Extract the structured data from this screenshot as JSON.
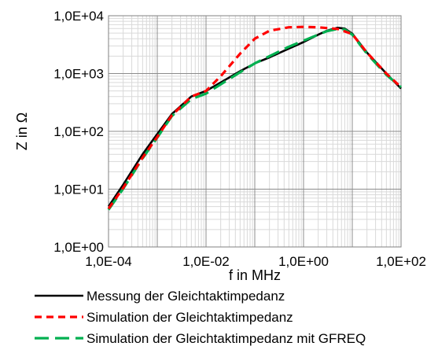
{
  "chart_data": {
    "type": "line",
    "xlabel": "f in MHz",
    "ylabel": "Z in Ω",
    "x_scale": "log",
    "y_scale": "log",
    "xlim": [
      0.0001,
      100
    ],
    "ylim": [
      1,
      10000
    ],
    "x_ticks": [
      {
        "value": 0.0001,
        "label": "1,0E-04"
      },
      {
        "value": 0.01,
        "label": "1,0E-02"
      },
      {
        "value": 1,
        "label": "1,0E+00"
      },
      {
        "value": 100,
        "label": "1,0E+02"
      }
    ],
    "y_ticks": [
      {
        "value": 1,
        "label": "1,0E+00"
      },
      {
        "value": 10,
        "label": "1,0E+01"
      },
      {
        "value": 100,
        "label": "1,0E+02"
      },
      {
        "value": 1000,
        "label": "1,0E+03"
      },
      {
        "value": 10000,
        "label": "1,0E+04"
      }
    ],
    "grid": true,
    "legend_position": "bottom",
    "series": [
      {
        "name": "Messung der Gleichtaktimpedanz",
        "color": "#000000",
        "style": "solid",
        "x": [
          0.0001,
          0.0002,
          0.0005,
          0.001,
          0.002,
          0.005,
          0.01,
          0.02,
          0.05,
          0.1,
          0.2,
          0.5,
          1,
          2,
          3,
          5,
          7,
          10,
          20,
          50,
          100
        ],
        "y": [
          5,
          12,
          40,
          90,
          200,
          400,
          500,
          700,
          1100,
          1500,
          1900,
          2700,
          3500,
          4700,
          5500,
          6200,
          6000,
          4900,
          2300,
          1000,
          550
        ]
      },
      {
        "name": "Simulation der Gleichtaktimpedanz",
        "color": "#ff0000",
        "style": "dashed",
        "x": [
          0.0001,
          0.0002,
          0.0005,
          0.001,
          0.002,
          0.005,
          0.01,
          0.02,
          0.05,
          0.1,
          0.2,
          0.5,
          1,
          2,
          5,
          10,
          20,
          50,
          100
        ],
        "y": [
          4.6,
          10.5,
          35,
          80,
          190,
          400,
          500,
          900,
          2200,
          4000,
          5500,
          6300,
          6400,
          6300,
          5900,
          4800,
          2300,
          1000,
          580
        ]
      },
      {
        "name": "Simulation der Gleichtaktimpedanz mit GFREQ",
        "color": "#00b050",
        "style": "dashed",
        "x": [
          0.0001,
          0.0002,
          0.0005,
          0.001,
          0.002,
          0.005,
          0.01,
          0.02,
          0.05,
          0.1,
          0.2,
          0.5,
          1,
          2,
          3,
          5,
          7,
          10,
          20,
          50,
          100
        ],
        "y": [
          4.4,
          10.2,
          34,
          78,
          185,
          360,
          450,
          650,
          1050,
          1500,
          2000,
          2900,
          3700,
          4700,
          5400,
          5900,
          5800,
          4700,
          2200,
          950,
          580
        ]
      }
    ]
  }
}
